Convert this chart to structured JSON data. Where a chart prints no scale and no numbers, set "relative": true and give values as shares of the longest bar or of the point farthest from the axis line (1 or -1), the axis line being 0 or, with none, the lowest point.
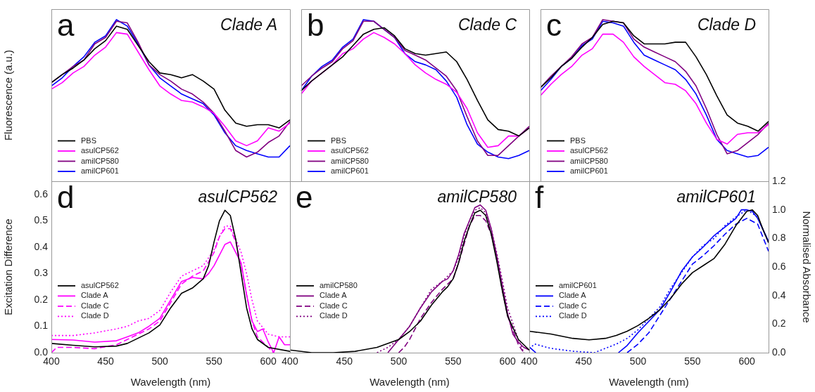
{
  "chart_data": [
    {
      "type": "line",
      "title": "Clade A",
      "annotations": [
        "a"
      ],
      "ylabel": "Fluorescence (a.u.)",
      "relative": true,
      "tick_labels": false,
      "legend": "bottom left",
      "grid": false,
      "marker": "none",
      "categories": [
        null,
        null,
        null,
        null,
        null,
        null,
        null,
        null,
        null,
        null,
        null,
        null,
        null,
        null,
        null,
        null,
        null,
        null,
        null,
        null,
        null,
        null,
        null
      ],
      "series": [
        {
          "name": "PBS",
          "color": "#000000",
          "values": [
            0.61,
            0.66,
            0.7,
            0.75,
            0.82,
            0.87,
            0.96,
            0.94,
            0.84,
            0.74,
            0.67,
            0.66,
            0.64,
            0.66,
            0.62,
            0.57,
            0.44,
            0.36,
            0.34,
            0.35,
            0.35,
            0.33,
            0.38
          ]
        },
        {
          "name": "asulCP562",
          "color": "#ff00ff",
          "values": [
            0.57,
            0.61,
            0.67,
            0.71,
            0.78,
            0.83,
            0.92,
            0.91,
            0.8,
            0.69,
            0.59,
            0.54,
            0.5,
            0.49,
            0.46,
            0.42,
            0.34,
            0.25,
            0.22,
            0.25,
            0.33,
            0.31,
            0.36
          ]
        },
        {
          "name": "amilCP580",
          "color": "#800080",
          "values": [
            0.61,
            0.66,
            0.71,
            0.75,
            0.85,
            0.89,
            0.99,
            0.98,
            0.86,
            0.72,
            0.66,
            0.62,
            0.57,
            0.54,
            0.49,
            0.42,
            0.31,
            0.19,
            0.15,
            0.18,
            0.24,
            0.28,
            0.37
          ]
        },
        {
          "name": "amilCP601",
          "color": "#0000ff",
          "values": [
            0.59,
            0.64,
            0.71,
            0.77,
            0.86,
            0.9,
            1.0,
            0.96,
            0.85,
            0.72,
            0.64,
            0.59,
            0.54,
            0.51,
            0.48,
            0.41,
            0.3,
            0.22,
            0.19,
            0.17,
            0.15,
            0.15,
            0.22
          ]
        }
      ]
    },
    {
      "type": "line",
      "title": "Clade C",
      "annotations": [
        "b"
      ],
      "relative": true,
      "tick_labels": false,
      "legend": "bottom left",
      "grid": false,
      "marker": "none",
      "categories": [
        null,
        null,
        null,
        null,
        null,
        null,
        null,
        null,
        null,
        null,
        null,
        null,
        null,
        null,
        null,
        null,
        null,
        null,
        null,
        null,
        null,
        null,
        null
      ],
      "series": [
        {
          "name": "PBS",
          "color": "#000000",
          "values": [
            0.56,
            0.62,
            0.67,
            0.72,
            0.77,
            0.84,
            0.91,
            0.94,
            0.95,
            0.9,
            0.82,
            0.79,
            0.78,
            0.79,
            0.8,
            0.74,
            0.63,
            0.5,
            0.38,
            0.32,
            0.31,
            0.28,
            0.33
          ]
        },
        {
          "name": "asulCP562",
          "color": "#ff00ff",
          "values": [
            0.54,
            0.62,
            0.67,
            0.72,
            0.79,
            0.82,
            0.88,
            0.92,
            0.89,
            0.85,
            0.79,
            0.72,
            0.67,
            0.63,
            0.6,
            0.55,
            0.45,
            0.3,
            0.21,
            0.22,
            0.28,
            0.28,
            0.33
          ]
        },
        {
          "name": "amilCP580",
          "color": "#800080",
          "values": [
            0.59,
            0.65,
            0.7,
            0.74,
            0.82,
            0.87,
            0.99,
            0.99,
            0.94,
            0.89,
            0.81,
            0.78,
            0.75,
            0.7,
            0.65,
            0.56,
            0.4,
            0.25,
            0.16,
            0.16,
            0.22,
            0.28,
            0.34
          ]
        },
        {
          "name": "amilCP601",
          "color": "#0000ff",
          "values": [
            0.56,
            0.65,
            0.71,
            0.75,
            0.83,
            0.88,
            1.0,
            0.99,
            0.94,
            0.89,
            0.79,
            0.74,
            0.72,
            0.69,
            0.62,
            0.52,
            0.35,
            0.23,
            0.18,
            0.15,
            0.14,
            0.16,
            0.19
          ]
        }
      ]
    },
    {
      "type": "line",
      "title": "Clade D",
      "annotations": [
        "c"
      ],
      "relative": true,
      "tick_labels": false,
      "legend": "bottom left",
      "grid": false,
      "marker": "none",
      "categories": [
        null,
        null,
        null,
        null,
        null,
        null,
        null,
        null,
        null,
        null,
        null,
        null,
        null,
        null,
        null,
        null,
        null,
        null,
        null,
        null,
        null,
        null,
        null
      ],
      "series": [
        {
          "name": "PBS",
          "color": "#000000",
          "values": [
            0.58,
            0.64,
            0.71,
            0.76,
            0.83,
            0.89,
            0.97,
            0.99,
            0.98,
            0.9,
            0.85,
            0.85,
            0.85,
            0.86,
            0.86,
            0.77,
            0.66,
            0.53,
            0.41,
            0.36,
            0.34,
            0.31,
            0.37
          ]
        },
        {
          "name": "asulCP562",
          "color": "#ff00ff",
          "values": [
            0.53,
            0.6,
            0.66,
            0.71,
            0.78,
            0.82,
            0.91,
            0.91,
            0.86,
            0.77,
            0.71,
            0.66,
            0.61,
            0.6,
            0.56,
            0.48,
            0.36,
            0.26,
            0.23,
            0.29,
            0.3,
            0.3,
            0.35
          ]
        },
        {
          "name": "amilCP580",
          "color": "#800080",
          "values": [
            0.58,
            0.65,
            0.71,
            0.77,
            0.85,
            0.89,
            1.0,
            0.99,
            0.98,
            0.88,
            0.83,
            0.8,
            0.77,
            0.74,
            0.68,
            0.59,
            0.45,
            0.29,
            0.17,
            0.19,
            0.24,
            0.29,
            0.36
          ]
        },
        {
          "name": "amilCP601",
          "color": "#0000ff",
          "values": [
            0.56,
            0.63,
            0.71,
            0.76,
            0.84,
            0.88,
            0.99,
            0.98,
            0.96,
            0.86,
            0.78,
            0.75,
            0.72,
            0.69,
            0.63,
            0.54,
            0.41,
            0.26,
            0.19,
            0.17,
            0.15,
            0.16,
            0.21
          ]
        }
      ]
    },
    {
      "type": "line",
      "title": "asulCP562",
      "annotations": [
        "d"
      ],
      "xlabel": "Wavelength (nm)",
      "ylabel": "Excitation Difference",
      "xlim": [
        400,
        620
      ],
      "xticks": [
        400,
        450,
        500,
        550,
        600
      ],
      "ylim": [
        0,
        0.65
      ],
      "yticks": [
        {
          "value": 0,
          "label": "0.0"
        },
        0.1,
        0.2,
        0.3,
        0.4,
        0.5,
        0.6
      ],
      "legend": "left",
      "grid": false,
      "marker": "none",
      "series": [
        {
          "name": "asulCP562",
          "color": "#000000",
          "line_style": "solid",
          "x": [
            400,
            420,
            440,
            460,
            470,
            480,
            490,
            500,
            510,
            520,
            530,
            540,
            545,
            550,
            555,
            560,
            565,
            570,
            575,
            580,
            585,
            590,
            600,
            620
          ],
          "values": [
            0.035,
            0.028,
            0.022,
            0.025,
            0.035,
            0.055,
            0.075,
            0.105,
            0.17,
            0.225,
            0.245,
            0.28,
            0.33,
            0.42,
            0.5,
            0.54,
            0.52,
            0.43,
            0.3,
            0.17,
            0.09,
            0.05,
            0.02,
            0.005
          ]
        },
        {
          "name": "Clade A",
          "color": "#ff00ff",
          "line_style": "solid",
          "x": [
            400,
            420,
            440,
            460,
            470,
            480,
            490,
            500,
            510,
            520,
            530,
            540,
            545,
            550,
            555,
            560,
            565,
            570,
            575,
            580,
            585,
            590,
            595,
            600,
            605,
            610,
            615,
            620
          ],
          "values": [
            0.05,
            0.048,
            0.04,
            0.045,
            0.06,
            0.075,
            0.1,
            0.13,
            0.2,
            0.27,
            0.285,
            0.28,
            0.3,
            0.33,
            0.37,
            0.41,
            0.42,
            0.38,
            0.34,
            0.22,
            0.12,
            0.08,
            0.09,
            0.04,
            0.0,
            0.06,
            0.03,
            0.03
          ]
        },
        {
          "name": "Clade C",
          "color": "#ff00ff",
          "line_style": "dashed",
          "x": [
            400,
            405,
            420,
            440,
            460,
            470,
            480,
            490,
            500,
            510,
            520,
            530,
            540,
            550,
            555,
            560,
            565,
            570,
            575,
            580,
            585,
            590,
            600,
            605
          ],
          "values": [
            0.0,
            0.02,
            0.02,
            0.015,
            0.03,
            0.05,
            0.07,
            0.09,
            0.12,
            0.19,
            0.26,
            0.29,
            0.31,
            0.38,
            0.44,
            0.47,
            0.47,
            0.42,
            0.33,
            0.22,
            0.12,
            0.06,
            0.02,
            0.0
          ]
        },
        {
          "name": "Clade D",
          "color": "#ff00ff",
          "line_style": "dotted",
          "x": [
            400,
            420,
            440,
            460,
            470,
            480,
            490,
            500,
            510,
            520,
            530,
            540,
            550,
            555,
            560,
            565,
            570,
            575,
            580,
            585,
            590,
            600,
            610,
            620
          ],
          "values": [
            0.065,
            0.065,
            0.075,
            0.09,
            0.1,
            0.12,
            0.13,
            0.16,
            0.23,
            0.29,
            0.31,
            0.33,
            0.39,
            0.44,
            0.48,
            0.48,
            0.43,
            0.38,
            0.3,
            0.2,
            0.12,
            0.07,
            0.06,
            0.06
          ]
        }
      ]
    },
    {
      "type": "line",
      "title": "amilCP580",
      "annotations": [
        "e"
      ],
      "xlabel": "Wavelength (nm)",
      "xlim": [
        400,
        620
      ],
      "xticks": [
        400,
        450,
        500,
        550,
        600
      ],
      "ylim": [
        0,
        0.65
      ],
      "tick_labels": "x",
      "legend": "left",
      "grid": false,
      "marker": "none",
      "series": [
        {
          "name": "amilCP580",
          "color": "#000000",
          "line_style": "solid",
          "x": [
            400,
            420,
            440,
            460,
            480,
            500,
            510,
            520,
            530,
            540,
            545,
            550,
            555,
            560,
            565,
            570,
            575,
            580,
            585,
            590,
            595,
            600,
            610,
            620
          ],
          "values": [
            0.01,
            0.0,
            0.0,
            0.005,
            0.02,
            0.05,
            0.08,
            0.12,
            0.18,
            0.23,
            0.25,
            0.28,
            0.34,
            0.42,
            0.48,
            0.53,
            0.54,
            0.52,
            0.45,
            0.35,
            0.24,
            0.14,
            0.05,
            0.01
          ]
        },
        {
          "name": "Clade A",
          "color": "#800080",
          "line_style": "solid",
          "x": [
            490,
            500,
            510,
            520,
            530,
            540,
            545,
            550,
            555,
            560,
            565,
            570,
            575,
            580,
            585,
            590,
            595,
            600,
            605,
            610,
            615,
            620
          ],
          "values": [
            0.0,
            0.05,
            0.1,
            0.17,
            0.23,
            0.27,
            0.28,
            0.31,
            0.37,
            0.45,
            0.5,
            0.55,
            0.56,
            0.54,
            0.47,
            0.37,
            0.26,
            0.15,
            0.07,
            0.04,
            0.02,
            0.01
          ]
        },
        {
          "name": "Clade C",
          "color": "#800080",
          "line_style": "dashed",
          "x": [
            500,
            505,
            510,
            520,
            530,
            540,
            550,
            555,
            560,
            565,
            570,
            575,
            580,
            585,
            590,
            595,
            600,
            610,
            615
          ],
          "values": [
            0.0,
            0.02,
            0.05,
            0.13,
            0.19,
            0.24,
            0.28,
            0.34,
            0.41,
            0.48,
            0.52,
            0.52,
            0.5,
            0.45,
            0.36,
            0.24,
            0.14,
            0.03,
            0.0
          ]
        },
        {
          "name": "Clade D",
          "color": "#800080",
          "line_style": "dotted",
          "x": [
            480,
            490,
            500,
            510,
            520,
            530,
            540,
            550,
            555,
            560,
            565,
            570,
            575,
            580,
            585,
            590,
            595,
            600,
            610,
            615
          ],
          "values": [
            0.0,
            0.02,
            0.05,
            0.1,
            0.17,
            0.24,
            0.27,
            0.31,
            0.36,
            0.44,
            0.5,
            0.54,
            0.55,
            0.53,
            0.47,
            0.38,
            0.28,
            0.17,
            0.05,
            0.0
          ]
        }
      ]
    },
    {
      "type": "line",
      "title": "amilCP601",
      "annotations": [
        "f"
      ],
      "xlabel": "Wavelength (nm)",
      "y2label": "Normalised Absorbance",
      "xlim": [
        400,
        620
      ],
      "xticks": [
        400,
        450,
        500,
        550,
        600
      ],
      "y2lim": [
        0,
        1.2
      ],
      "y2ticks": [
        {
          "value": 0,
          "label": "0.0"
        },
        0.2,
        0.4,
        0.6,
        0.8,
        {
          "value": 1,
          "label": "1.0"
        },
        1.2
      ],
      "legend": "left",
      "grid": false,
      "marker": "none",
      "series": [
        {
          "name": "amilCP601",
          "color": "#000000",
          "line_style": "solid",
          "axis": "y2",
          "x": [
            400,
            420,
            440,
            455,
            470,
            480,
            490,
            500,
            510,
            520,
            530,
            540,
            550,
            560,
            570,
            580,
            590,
            600,
            605,
            610,
            615,
            620
          ],
          "values": [
            0.15,
            0.13,
            0.1,
            0.09,
            0.1,
            0.12,
            0.15,
            0.19,
            0.24,
            0.3,
            0.38,
            0.48,
            0.56,
            0.61,
            0.66,
            0.76,
            0.89,
            0.99,
            1.0,
            0.96,
            0.86,
            0.77
          ]
        },
        {
          "name": "Clade A",
          "color": "#0000ff",
          "line_style": "solid",
          "axis": "y2",
          "x": [
            400,
            406,
            440,
            482,
            490,
            500,
            510,
            520,
            530,
            540,
            550,
            560,
            570,
            580,
            590,
            595,
            600,
            605,
            610,
            620
          ],
          "values": [
            0.04,
            0.0,
            null,
            0.0,
            0.05,
            0.14,
            0.22,
            0.3,
            0.43,
            0.57,
            0.67,
            0.74,
            0.82,
            0.88,
            0.94,
            1.0,
            1.0,
            0.99,
            0.94,
            0.78
          ]
        },
        {
          "name": "Clade C",
          "color": "#0000ff",
          "line_style": "dashed",
          "axis": "y2",
          "x": [
            490,
            500,
            510,
            520,
            530,
            540,
            550,
            560,
            570,
            580,
            590,
            600,
            610,
            620
          ],
          "values": [
            0.0,
            0.06,
            0.14,
            0.26,
            0.38,
            0.5,
            0.62,
            0.68,
            0.75,
            0.83,
            0.9,
            0.94,
            0.9,
            0.71
          ]
        },
        {
          "name": "Clade D",
          "color": "#0000ff",
          "line_style": "dotted",
          "axis": "y2",
          "x": [
            400,
            405,
            420,
            430,
            440,
            450,
            460,
            470,
            480,
            490,
            500,
            510,
            520,
            530,
            540,
            550,
            560,
            570,
            580,
            590,
            600,
            610,
            620
          ],
          "values": [
            0.03,
            0.06,
            0.03,
            0.02,
            0.01,
            0.005,
            0.0,
            0.03,
            0.06,
            0.1,
            0.16,
            0.24,
            0.32,
            0.45,
            0.56,
            0.67,
            0.75,
            0.8,
            0.89,
            0.95,
            1.0,
            0.95,
            0.77
          ]
        }
      ]
    }
  ]
}
